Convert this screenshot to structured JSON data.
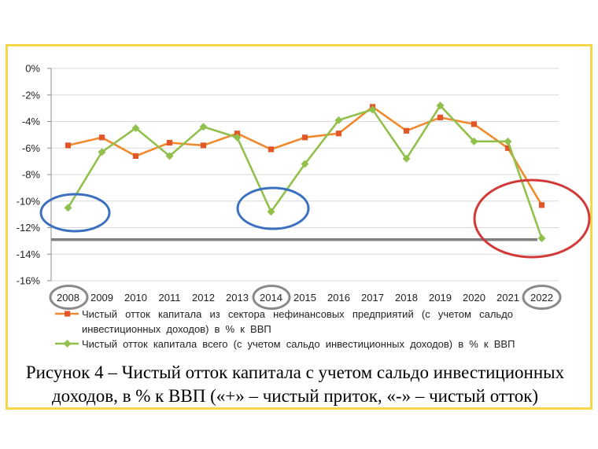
{
  "figure": {
    "frame_color": "#f6d548",
    "highlight_colors": {
      "blue": "#3b6fc0",
      "red": "#d23a3a",
      "grey": "#8a8a8a"
    }
  },
  "chart_data": {
    "type": "line",
    "title": "Рисунок 4 – Чистый отток капитала с учетом сальдо инвестиционных доходов, в % к ВВП («+» – чистый приток, «-» – чистый отток)",
    "xlabel": "",
    "ylabel": "",
    "categories": [
      "2008",
      "2009",
      "2010",
      "2011",
      "2012",
      "2013",
      "2014",
      "2015",
      "2016",
      "2017",
      "2018",
      "2019",
      "2020",
      "2021",
      "2022"
    ],
    "ylim": [
      -16,
      0
    ],
    "yticks": [
      0,
      -2,
      -4,
      -6,
      -8,
      -10,
      -12,
      -14,
      -16
    ],
    "ytick_labels": [
      "0%",
      "-2%",
      "-4%",
      "-6%",
      "-8%",
      "-10%",
      "-12%",
      "-14%",
      "-16%"
    ],
    "grid": true,
    "legend_position": "bottom",
    "series": [
      {
        "name": "Чистый отток капитала из сектора нефинансовых предприятий (с учетом сальдо инвестиционных доходов) в % к ВВП",
        "color": "#ef8a2f",
        "marker": "square",
        "marker_color": "#e2572a",
        "values": [
          -5.8,
          -5.2,
          -6.6,
          -5.6,
          -5.8,
          -4.9,
          -6.1,
          -5.2,
          -4.9,
          -2.9,
          -4.7,
          -3.7,
          -4.2,
          -6.0,
          -10.3
        ]
      },
      {
        "name": "Чистый отток капитала всего (с учетом сальдо инвестиционных доходов) в % к ВВП",
        "color": "#92c04d",
        "marker": "diamond",
        "marker_color": "#92c04d",
        "values": [
          -10.5,
          -6.3,
          -4.5,
          -6.6,
          -4.4,
          -5.2,
          -10.8,
          -7.2,
          -3.9,
          -3.1,
          -6.8,
          -2.8,
          -5.5,
          -5.5,
          -12.8
        ]
      }
    ],
    "reference_line": {
      "value": -12.9,
      "color": "#808080"
    }
  }
}
